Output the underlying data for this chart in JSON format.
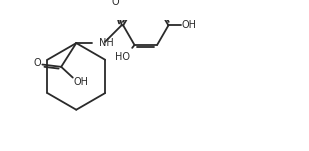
{
  "background_color": "#ffffff",
  "line_color": "#2a2a2a",
  "line_width": 1.3,
  "text_color": "#2a2a2a",
  "font_size": 7.0,
  "figsize": [
    3.09,
    1.51
  ],
  "dpi": 100,
  "xlim": [
    0,
    9.5
  ],
  "ylim": [
    0,
    4.5
  ]
}
